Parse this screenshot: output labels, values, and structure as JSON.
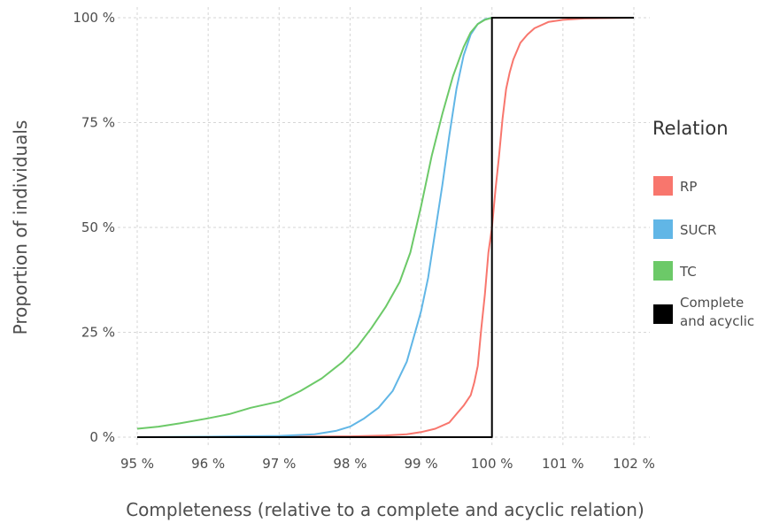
{
  "chart_data": {
    "type": "line",
    "title": "",
    "xlabel": "Completeness (relative to a complete and acyclic relation)",
    "ylabel": "Proportion of individuals",
    "xlim": [
      95,
      102
    ],
    "ylim": [
      0,
      100
    ],
    "x_ticks": [
      95,
      96,
      97,
      98,
      99,
      100,
      101,
      102
    ],
    "x_tick_labels": [
      "95 %",
      "96 %",
      "97 %",
      "98 %",
      "99 %",
      "100 %",
      "101 %",
      "102 %"
    ],
    "y_ticks": [
      0,
      25,
      50,
      75,
      100
    ],
    "y_tick_labels": [
      "0 %",
      "25 %",
      "50 %",
      "75 %",
      "100 %"
    ],
    "grid": true,
    "legend": {
      "title": "Relation",
      "placement": "right",
      "entries": [
        {
          "label": [
            "RP"
          ],
          "color": "#F8766D"
        },
        {
          "label": [
            "SUCR"
          ],
          "color": "#61B6E6"
        },
        {
          "label": [
            "TC"
          ],
          "color": "#6CC968"
        },
        {
          "label": [
            "Complete",
            "and acyclic"
          ],
          "color": "#000000"
        }
      ]
    },
    "series": [
      {
        "name": "RP",
        "color": "#F8766D",
        "x": [
          95,
          96,
          97,
          98,
          98.5,
          98.8,
          99.0,
          99.2,
          99.4,
          99.5,
          99.6,
          99.7,
          99.75,
          99.8,
          99.85,
          99.9,
          99.95,
          100.0,
          100.05,
          100.1,
          100.15,
          100.2,
          100.25,
          100.3,
          100.4,
          100.5,
          100.6,
          100.8,
          101.0,
          101.3,
          101.6,
          102.0
        ],
        "y": [
          0,
          0,
          0.1,
          0.2,
          0.4,
          0.7,
          1.2,
          2.0,
          3.5,
          5.5,
          7.5,
          10,
          13,
          17,
          26,
          34,
          44,
          50,
          59,
          67,
          76,
          83,
          87,
          90,
          94,
          96,
          97.5,
          99,
          99.5,
          99.8,
          99.9,
          100
        ]
      },
      {
        "name": "SUCR",
        "color": "#61B6E6",
        "x": [
          95,
          96,
          97,
          97.5,
          97.8,
          98.0,
          98.2,
          98.4,
          98.6,
          98.8,
          98.9,
          99.0,
          99.1,
          99.2,
          99.3,
          99.4,
          99.5,
          99.6,
          99.7,
          99.8,
          99.9,
          100.0,
          102.0
        ],
        "y": [
          0,
          0.1,
          0.3,
          0.7,
          1.5,
          2.5,
          4.5,
          7,
          11,
          18,
          24,
          30,
          38,
          49,
          60,
          72,
          83,
          91,
          96,
          98.5,
          99.6,
          100,
          100
        ]
      },
      {
        "name": "TC",
        "color": "#6CC968",
        "x": [
          95,
          95.3,
          95.6,
          96.0,
          96.3,
          96.6,
          97.0,
          97.3,
          97.6,
          97.9,
          98.1,
          98.3,
          98.5,
          98.7,
          98.85,
          99.0,
          99.15,
          99.3,
          99.45,
          99.6,
          99.7,
          99.8,
          99.9,
          100.0,
          102.0
        ],
        "y": [
          2,
          2.5,
          3.3,
          4.5,
          5.5,
          7,
          8.5,
          11,
          14,
          18,
          21.5,
          26,
          31,
          37,
          44,
          55,
          67,
          77,
          86,
          93,
          96.5,
          98.5,
          99.5,
          100,
          100
        ]
      },
      {
        "name": "Complete and acyclic",
        "color": "#000000",
        "x": [
          95,
          100,
          100,
          102
        ],
        "y": [
          0,
          0,
          100,
          100
        ]
      }
    ]
  }
}
